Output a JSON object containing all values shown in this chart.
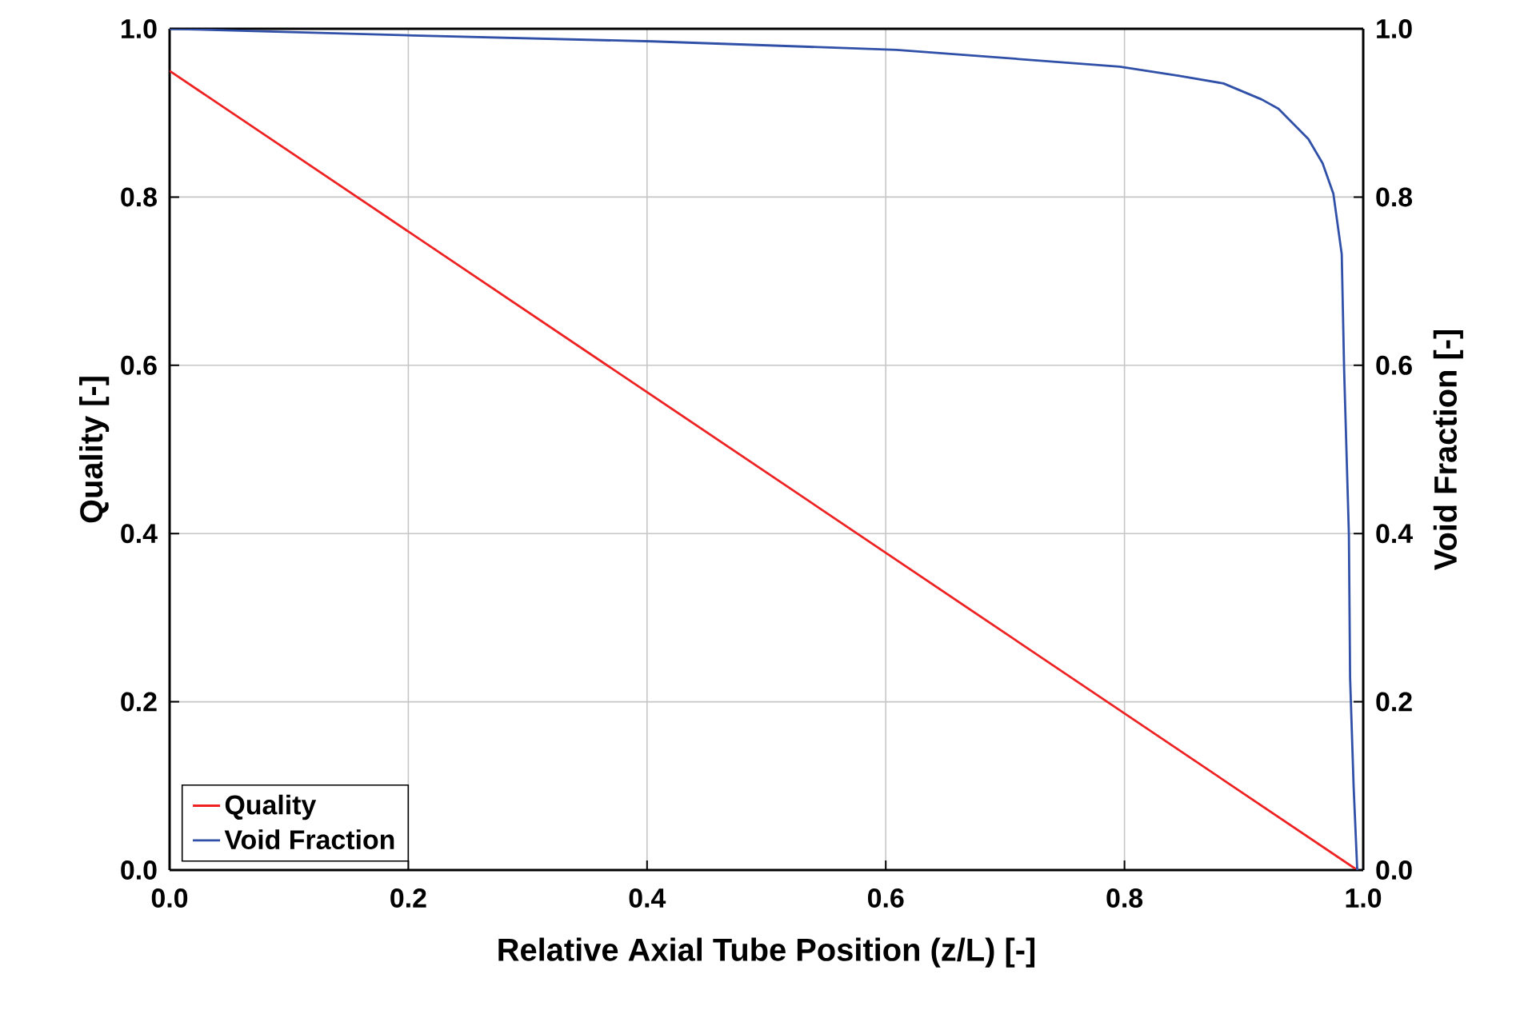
{
  "chart_data": {
    "type": "line",
    "xlabel": "Relative Axial Tube Position (z/L) [-]",
    "ylabel": "Quality [-]",
    "y2label": "Void Fraction [-]",
    "xlim": [
      0,
      1
    ],
    "ylim": [
      0,
      1
    ],
    "y2lim": [
      0,
      1
    ],
    "xticks": [
      {
        "value": 0,
        "label": "0.0"
      },
      {
        "value": 0.2,
        "label": "0.2"
      },
      {
        "value": 0.4,
        "label": "0.4"
      },
      {
        "value": 0.6,
        "label": "0.6"
      },
      {
        "value": 0.8,
        "label": "0.8"
      },
      {
        "value": 1,
        "label": "1.0"
      }
    ],
    "yticks": [
      {
        "value": 0,
        "label": "0.0"
      },
      {
        "value": 0.2,
        "label": "0.2"
      },
      {
        "value": 0.4,
        "label": "0.4"
      },
      {
        "value": 0.6,
        "label": "0.6"
      },
      {
        "value": 0.8,
        "label": "0.8"
      },
      {
        "value": 1,
        "label": "1.0"
      }
    ],
    "y2ticks": [
      {
        "value": 0,
        "label": "0.0"
      },
      {
        "value": 0.2,
        "label": "0.2"
      },
      {
        "value": 0.4,
        "label": "0.4"
      },
      {
        "value": 0.6,
        "label": "0.6"
      },
      {
        "value": 0.8,
        "label": "0.8"
      },
      {
        "value": 1,
        "label": "1.0"
      }
    ],
    "grid": true,
    "legend": "bottom left",
    "marker": "none",
    "line_style": "solid",
    "series": [
      {
        "name": "Quality",
        "color": "#ee2222",
        "x": [
          0,
          0.995
        ],
        "values": [
          0.95,
          0
        ]
      },
      {
        "name": "Void Fraction",
        "color": "#3050a8",
        "axis": "y2",
        "x": [
          0,
          0.204,
          0.405,
          0.609,
          0.796,
          0.846,
          0.883,
          0.915,
          0.929,
          0.954,
          0.966,
          0.975,
          0.982,
          0.984,
          0.988,
          0.989,
          0.992,
          0.995
        ],
        "values": [
          1.0,
          0.992,
          0.985,
          0.975,
          0.955,
          0.944,
          0.935,
          0.916,
          0.905,
          0.869,
          0.84,
          0.804,
          0.732,
          0.595,
          0.399,
          0.229,
          0.098,
          0
        ]
      }
    ]
  }
}
